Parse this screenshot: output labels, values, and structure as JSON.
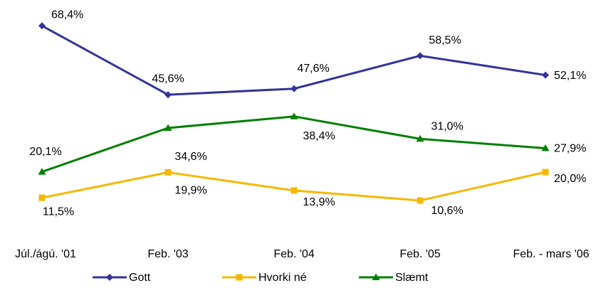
{
  "chart_data": {
    "type": "line",
    "categories": [
      "Júl./ágú. '01",
      "Feb. '03",
      "Feb. '04",
      "Feb. '05",
      "Feb. - mars '06"
    ],
    "series": [
      {
        "name": "Gott",
        "color": "#333399",
        "marker": "diamond",
        "values": [
          68.4,
          45.6,
          47.6,
          58.5,
          52.1
        ],
        "value_labels": [
          "68,4%",
          "45,6%",
          "47,6%",
          "58,5%",
          "52,1%"
        ]
      },
      {
        "name": "Hvorki né",
        "color": "#f5b800",
        "marker": "square",
        "values": [
          11.5,
          19.9,
          13.9,
          10.6,
          20.0
        ],
        "value_labels": [
          "11,5%",
          "19,9%",
          "13,9%",
          "10,6%",
          "20,0%"
        ]
      },
      {
        "name": "Slæmt",
        "color": "#008000",
        "marker": "triangle",
        "values": [
          20.1,
          34.6,
          38.4,
          31.0,
          27.9
        ],
        "value_labels": [
          "20,1%",
          "34,6%",
          "38,4%",
          "31,0%",
          "27,9%"
        ]
      }
    ]
  }
}
